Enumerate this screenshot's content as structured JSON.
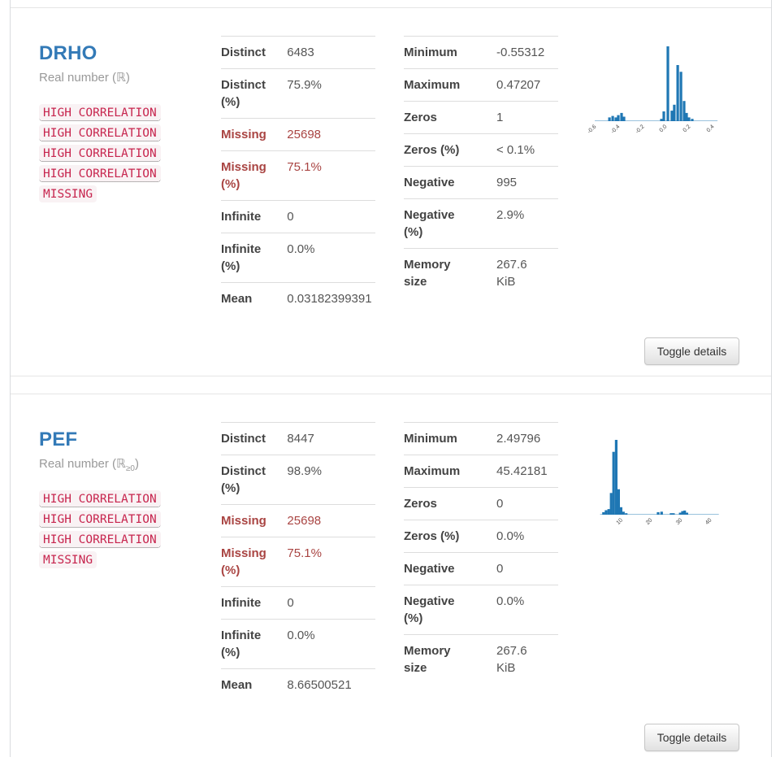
{
  "report": {
    "toggle_details_label": "Toggle details"
  },
  "variables": [
    {
      "name": "DRHO",
      "type_prefix": "Real number (ℝ",
      "type_sub": "",
      "type_suffix": ")",
      "alerts": [
        {
          "label": "HIGH CORRELATION",
          "dotted": true
        },
        {
          "label": "HIGH CORRELATION",
          "dotted": true
        },
        {
          "label": "HIGH CORRELATION",
          "dotted": true
        },
        {
          "label": "HIGH CORRELATION",
          "dotted": true
        },
        {
          "label": "MISSING",
          "dotted": false
        }
      ],
      "stats_left": [
        {
          "label": "Distinct",
          "value": "6483"
        },
        {
          "label": "Distinct\n(%)",
          "value": "75.9%"
        },
        {
          "label": "Missing",
          "value": "25698",
          "alert": true
        },
        {
          "label": "Missing\n(%)",
          "value": "75.1%",
          "alert": true
        },
        {
          "label": "Infinite",
          "value": "0"
        },
        {
          "label": "Infinite\n(%)",
          "value": "0.0%"
        },
        {
          "label": "Mean",
          "value": "0.03182399391"
        }
      ],
      "stats_right": [
        {
          "label": "Minimum",
          "value": "-0.55312"
        },
        {
          "label": "Maximum",
          "value": "0.47207"
        },
        {
          "label": "Zeros",
          "value": "1"
        },
        {
          "label": "Zeros (%)",
          "value": "< 0.1%"
        },
        {
          "label": "Negative",
          "value": "995"
        },
        {
          "label": "Negative\n(%)",
          "value": "2.9%"
        },
        {
          "label": "Memory\nsize",
          "value": "267.6\nKiB"
        }
      ],
      "histogram": {
        "type": "bar",
        "color": "#1f77b4",
        "x_range": [
          -0.6,
          0.5
        ],
        "base_span": [
          0.03,
          0.94
        ],
        "bars": [
          {
            "x": 0.139,
            "h": 0.05
          },
          {
            "x": 0.163,
            "h": 0.07
          },
          {
            "x": 0.187,
            "h": 0.05
          },
          {
            "x": 0.205,
            "h": 0.08
          },
          {
            "x": 0.229,
            "h": 0.11
          },
          {
            "x": 0.247,
            "h": 0.06
          },
          {
            "x": 0.524,
            "h": 0.03
          },
          {
            "x": 0.542,
            "h": 0.13
          },
          {
            "x": 0.572,
            "h": 1.0
          },
          {
            "x": 0.602,
            "h": 0.14
          },
          {
            "x": 0.62,
            "h": 0.22
          },
          {
            "x": 0.645,
            "h": 0.75
          },
          {
            "x": 0.669,
            "h": 0.66
          },
          {
            "x": 0.693,
            "h": 0.27
          },
          {
            "x": 0.711,
            "h": 0.11
          },
          {
            "x": 0.729,
            "h": 0.05
          },
          {
            "x": 0.753,
            "h": 0.03
          }
        ],
        "x_ticks": [
          {
            "x": 0.042,
            "label": "-0.6"
          },
          {
            "x": 0.217,
            "label": "-0.4"
          },
          {
            "x": 0.398,
            "label": "-0.2"
          },
          {
            "x": 0.566,
            "label": "0.0"
          },
          {
            "x": 0.741,
            "label": "0.2"
          },
          {
            "x": 0.916,
            "label": "0.4"
          }
        ]
      }
    },
    {
      "name": "PEF",
      "type_prefix": "Real number (ℝ",
      "type_sub": "≥0",
      "type_suffix": ")",
      "alerts": [
        {
          "label": "HIGH CORRELATION",
          "dotted": true
        },
        {
          "label": "HIGH CORRELATION",
          "dotted": true
        },
        {
          "label": "HIGH CORRELATION",
          "dotted": true
        },
        {
          "label": "MISSING",
          "dotted": false
        }
      ],
      "stats_left": [
        {
          "label": "Distinct",
          "value": "8447"
        },
        {
          "label": "Distinct\n(%)",
          "value": "98.9%"
        },
        {
          "label": "Missing",
          "value": "25698",
          "alert": true
        },
        {
          "label": "Missing\n(%)",
          "value": "75.1%",
          "alert": true
        },
        {
          "label": "Infinite",
          "value": "0"
        },
        {
          "label": "Infinite\n(%)",
          "value": "0.0%"
        },
        {
          "label": "Mean",
          "value": "8.66500521"
        }
      ],
      "stats_right": [
        {
          "label": "Minimum",
          "value": "2.49796"
        },
        {
          "label": "Maximum",
          "value": "45.42181"
        },
        {
          "label": "Zeros",
          "value": "0"
        },
        {
          "label": "Zeros (%)",
          "value": "0.0%"
        },
        {
          "label": "Negative",
          "value": "0"
        },
        {
          "label": "Negative\n(%)",
          "value": "0.0%"
        },
        {
          "label": "Memory\nsize",
          "value": "267.6\nKiB"
        }
      ],
      "histogram": {
        "type": "bar",
        "color": "#1f77b4",
        "x_range": [
          0,
          46
        ],
        "base_span": [
          0.07,
          0.95
        ],
        "bars": [
          {
            "x": 0.095,
            "h": 0.034
          },
          {
            "x": 0.114,
            "h": 0.06
          },
          {
            "x": 0.134,
            "h": 0.075
          },
          {
            "x": 0.152,
            "h": 0.29
          },
          {
            "x": 0.17,
            "h": 0.84
          },
          {
            "x": 0.189,
            "h": 1.0
          },
          {
            "x": 0.207,
            "h": 0.34
          },
          {
            "x": 0.225,
            "h": 0.1
          },
          {
            "x": 0.243,
            "h": 0.04
          },
          {
            "x": 0.263,
            "h": 0.02
          },
          {
            "x": 0.5,
            "h": 0.034
          },
          {
            "x": 0.526,
            "h": 0.04
          },
          {
            "x": 0.596,
            "h": 0.02
          },
          {
            "x": 0.614,
            "h": 0.02
          },
          {
            "x": 0.664,
            "h": 0.027
          },
          {
            "x": 0.681,
            "h": 0.048
          },
          {
            "x": 0.697,
            "h": 0.055
          },
          {
            "x": 0.713,
            "h": 0.027
          }
        ],
        "x_ticks": [
          {
            "x": 0.239,
            "label": "10"
          },
          {
            "x": 0.458,
            "label": "20"
          },
          {
            "x": 0.681,
            "label": "30"
          },
          {
            "x": 0.898,
            "label": "40"
          }
        ]
      }
    }
  ]
}
